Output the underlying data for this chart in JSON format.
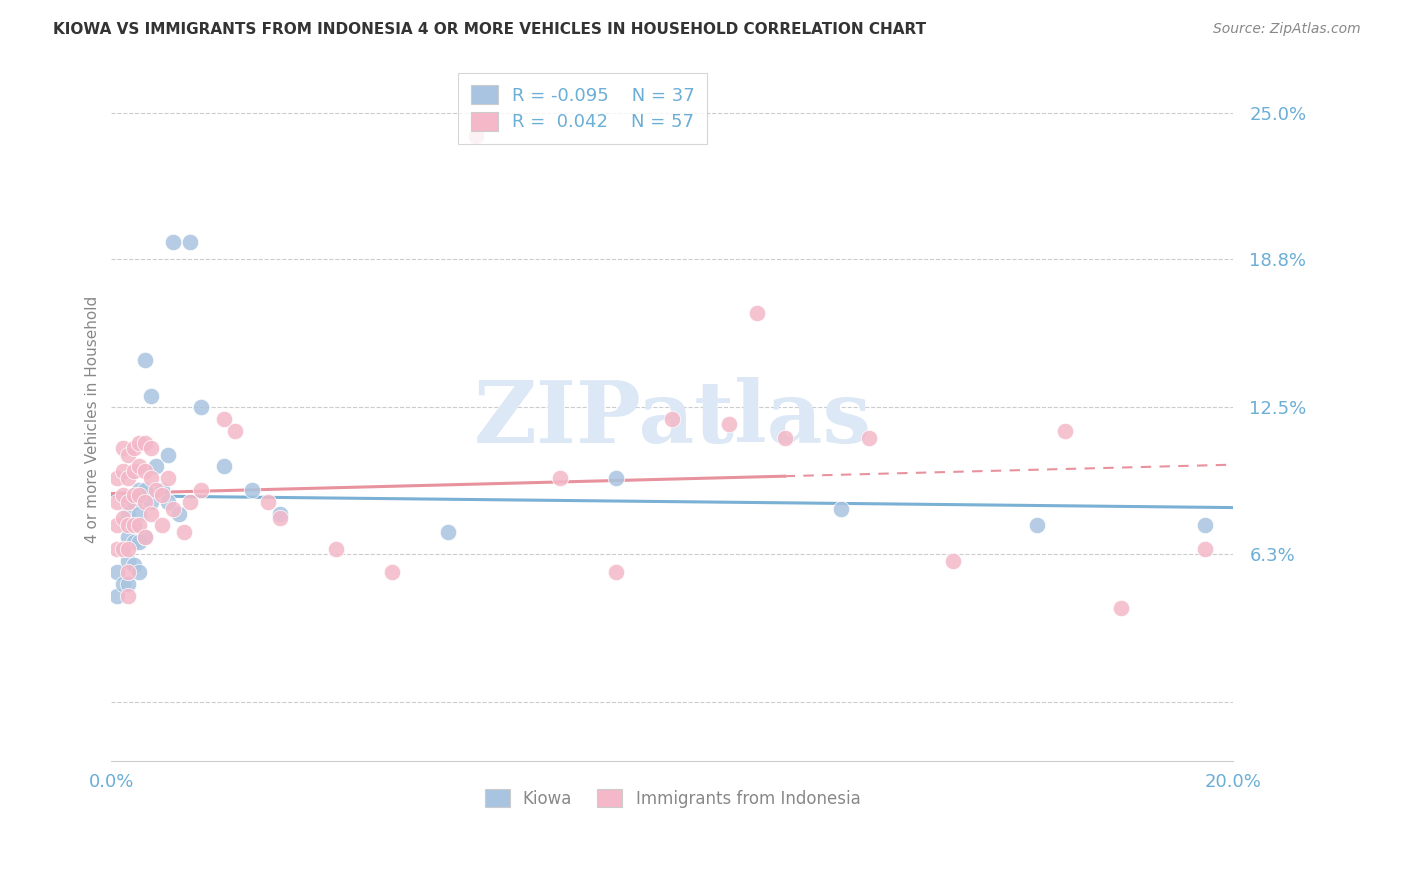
{
  "title": "KIOWA VS IMMIGRANTS FROM INDONESIA 4 OR MORE VEHICLES IN HOUSEHOLD CORRELATION CHART",
  "source": "Source: ZipAtlas.com",
  "ylabel": "4 or more Vehicles in Household",
  "xlim": [
    0.0,
    0.2
  ],
  "ylim": [
    -0.025,
    0.265
  ],
  "ytick_vals": [
    0.063,
    0.125,
    0.188,
    0.25
  ],
  "ytick_labels": [
    "6.3%",
    "12.5%",
    "18.8%",
    "25.0%"
  ],
  "xtick_vals": [
    0.0,
    0.05,
    0.1,
    0.15,
    0.2
  ],
  "xtick_labels": [
    "0.0%",
    "",
    "",
    "",
    "20.0%"
  ],
  "color_kiowa": "#a8c4e0",
  "color_indonesia": "#f4b8c8",
  "color_line_kiowa": "#7ab0d4",
  "color_line_indonesia": "#e8929e",
  "color_axis_label": "#6baed6",
  "watermark_text": "ZIPatlas",
  "watermark_color": "#dce8f5",
  "legend1_label": "R = -0.095    N = 37",
  "legend2_label": "R =  0.042    N = 57",
  "kiowa_x": [
    0.001,
    0.001,
    0.002,
    0.002,
    0.003,
    0.003,
    0.003,
    0.003,
    0.004,
    0.004,
    0.004,
    0.004,
    0.005,
    0.005,
    0.005,
    0.005,
    0.006,
    0.006,
    0.006,
    0.007,
    0.007,
    0.008,
    0.009,
    0.01,
    0.01,
    0.011,
    0.012,
    0.014,
    0.016,
    0.02,
    0.025,
    0.03,
    0.06,
    0.09,
    0.13,
    0.165,
    0.195
  ],
  "kiowa_y": [
    0.055,
    0.045,
    0.065,
    0.05,
    0.08,
    0.07,
    0.06,
    0.05,
    0.085,
    0.075,
    0.068,
    0.058,
    0.09,
    0.08,
    0.068,
    0.055,
    0.145,
    0.09,
    0.07,
    0.13,
    0.085,
    0.1,
    0.09,
    0.105,
    0.085,
    0.195,
    0.08,
    0.195,
    0.125,
    0.1,
    0.09,
    0.08,
    0.072,
    0.095,
    0.082,
    0.075,
    0.075
  ],
  "indonesia_x": [
    0.001,
    0.001,
    0.001,
    0.001,
    0.002,
    0.002,
    0.002,
    0.002,
    0.002,
    0.003,
    0.003,
    0.003,
    0.003,
    0.003,
    0.003,
    0.003,
    0.004,
    0.004,
    0.004,
    0.004,
    0.005,
    0.005,
    0.005,
    0.005,
    0.006,
    0.006,
    0.006,
    0.006,
    0.007,
    0.007,
    0.007,
    0.008,
    0.009,
    0.009,
    0.01,
    0.011,
    0.013,
    0.014,
    0.016,
    0.02,
    0.022,
    0.028,
    0.03,
    0.04,
    0.05,
    0.065,
    0.08,
    0.09,
    0.1,
    0.11,
    0.115,
    0.12,
    0.135,
    0.15,
    0.17,
    0.18,
    0.195
  ],
  "indonesia_y": [
    0.095,
    0.085,
    0.075,
    0.065,
    0.108,
    0.098,
    0.088,
    0.078,
    0.065,
    0.105,
    0.095,
    0.085,
    0.075,
    0.065,
    0.055,
    0.045,
    0.108,
    0.098,
    0.088,
    0.075,
    0.11,
    0.1,
    0.088,
    0.075,
    0.11,
    0.098,
    0.085,
    0.07,
    0.108,
    0.095,
    0.08,
    0.09,
    0.088,
    0.075,
    0.095,
    0.082,
    0.072,
    0.085,
    0.09,
    0.12,
    0.115,
    0.085,
    0.078,
    0.065,
    0.055,
    0.24,
    0.095,
    0.055,
    0.12,
    0.118,
    0.165,
    0.112,
    0.112,
    0.06,
    0.115,
    0.04,
    0.065
  ]
}
